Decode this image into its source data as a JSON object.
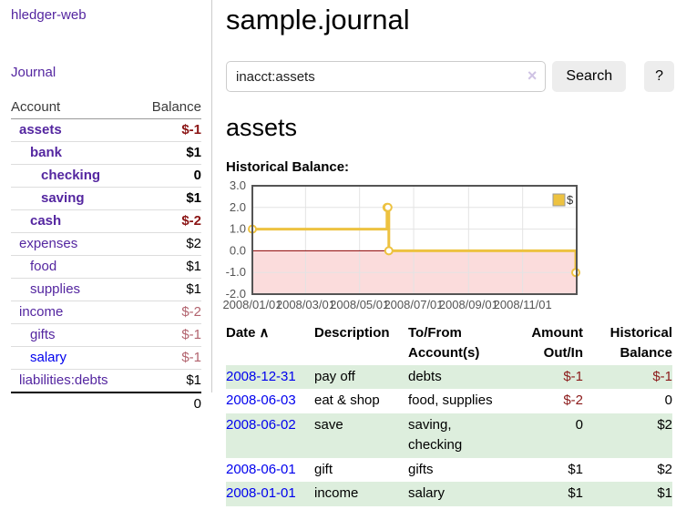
{
  "app": {
    "brand": "hledger-web"
  },
  "nav": {
    "journal": "Journal"
  },
  "sidebar": {
    "account_header": "Account",
    "balance_header": "Balance",
    "accounts": [
      {
        "name": "assets",
        "balance": "$-1"
      },
      {
        "name": "bank",
        "balance": "$1"
      },
      {
        "name": "checking",
        "balance": "0"
      },
      {
        "name": "saving",
        "balance": "$1"
      },
      {
        "name": "cash",
        "balance": "$-2"
      },
      {
        "name": "expenses",
        "balance": "$2"
      },
      {
        "name": "food",
        "balance": "$1"
      },
      {
        "name": "supplies",
        "balance": "$1"
      },
      {
        "name": "income",
        "balance": "$-2"
      },
      {
        "name": "gifts",
        "balance": "$-1"
      },
      {
        "name": "salary",
        "balance": "$-1"
      },
      {
        "name": "liabilities:debts",
        "balance": "$1"
      }
    ],
    "total": "0"
  },
  "header": {
    "title": "sample.journal"
  },
  "search": {
    "value": "inacct:assets",
    "clear_label": "×",
    "button_label": "Search",
    "help_label": "?"
  },
  "account_view": {
    "title": "assets",
    "chart_heading": "Historical Balance:"
  },
  "chart_data": {
    "type": "line",
    "title": "Historical Balance",
    "series": [
      {
        "name": "$",
        "step": true,
        "points": [
          [
            "2008-01-01",
            1.0
          ],
          [
            "2008-06-01",
            2.0
          ],
          [
            "2008-06-02",
            2.0
          ],
          [
            "2008-06-03",
            0.0
          ],
          [
            "2008-12-31",
            -1.0
          ]
        ]
      }
    ],
    "xlim": [
      "2008-01-01",
      "2009-01-01"
    ],
    "ylim": [
      -2.0,
      3.0
    ],
    "yticks": [
      3.0,
      2.0,
      1.0,
      0.0,
      -1.0,
      -2.0
    ],
    "xticks": [
      {
        "date": "2008-01-01",
        "label": "2008/01/01"
      },
      {
        "date": "2008-03-01",
        "label": "2008/03/01"
      },
      {
        "date": "2008-05-01",
        "label": "2008/05/01"
      },
      {
        "date": "2008-07-01",
        "label": "2008/07/01"
      },
      {
        "date": "2008-09-01",
        "label": "2008/09/01"
      },
      {
        "date": "2008-11-01",
        "label": "2008/11/01"
      }
    ],
    "legend": {
      "position": "top-right",
      "label": "$"
    },
    "grid": true,
    "colors": {
      "series": "#edc240",
      "negative_region": "#fbdcdc",
      "zero_line": "#8b0000",
      "grid": "#e3e3e3",
      "border": "#545454",
      "tick_text": "#545454",
      "legend_border": "#999999"
    }
  },
  "register": {
    "headers": {
      "date": "Date",
      "sort_icon": "∧",
      "description": "Description",
      "accounts": "To/From\nAccount(s)",
      "amount": "Amount\nOut/In",
      "balance": "Historical\nBalance"
    },
    "rows": [
      {
        "date": "2008-12-31",
        "description": "pay off",
        "accounts": "debts",
        "amount": "$-1",
        "balance": "$-1"
      },
      {
        "date": "2008-06-03",
        "description": "eat & shop",
        "accounts": "food, supplies",
        "amount": "$-2",
        "balance": "0"
      },
      {
        "date": "2008-06-02",
        "description": "save",
        "accounts": "saving,\nchecking",
        "amount": "0",
        "balance": "$2"
      },
      {
        "date": "2008-06-01",
        "description": "gift",
        "accounts": "gifts",
        "amount": "$1",
        "balance": "$2"
      },
      {
        "date": "2008-01-01",
        "description": "income",
        "accounts": "salary",
        "amount": "$1",
        "balance": "$1"
      }
    ]
  }
}
